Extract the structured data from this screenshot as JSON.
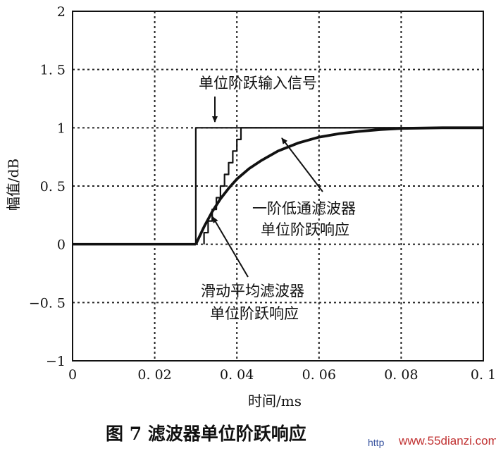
{
  "chart_data": {
    "type": "line",
    "xlabel": "时间/ms",
    "ylabel": "幅值/dB",
    "xlim": [
      0,
      0.1
    ],
    "ylim": [
      -1,
      2
    ],
    "grid": true,
    "xticks": [
      0,
      0.02,
      0.04,
      0.06,
      0.08,
      0.1
    ],
    "xtick_labels": [
      "0",
      "0. 02",
      "0. 04",
      "0. 06",
      "0. 08",
      "0. 1"
    ],
    "yticks": [
      -1,
      -0.5,
      0,
      0.5,
      1,
      1.5,
      2
    ],
    "ytick_labels": [
      "−1",
      "−0. 5",
      "0",
      "0. 5",
      "1",
      "1. 5",
      "2"
    ],
    "series": [
      {
        "key": "step",
        "x": [
          0,
          0.03,
          0.03,
          0.1
        ],
        "y": [
          0,
          0,
          1,
          1
        ]
      },
      {
        "key": "first_order",
        "x": [
          0.03,
          0.032,
          0.034,
          0.036,
          0.038,
          0.04,
          0.043,
          0.046,
          0.05,
          0.055,
          0.06,
          0.065,
          0.07,
          0.075,
          0.08,
          0.09,
          0.1
        ],
        "y": [
          0,
          0.15,
          0.28,
          0.39,
          0.48,
          0.56,
          0.65,
          0.72,
          0.8,
          0.87,
          0.92,
          0.95,
          0.97,
          0.985,
          0.995,
          1,
          1
        ]
      },
      {
        "key": "moving_average",
        "x": [
          0.032,
          0.032,
          0.033,
          0.033,
          0.034,
          0.034,
          0.035,
          0.035,
          0.036,
          0.036,
          0.037,
          0.037,
          0.038,
          0.038,
          0.039,
          0.039,
          0.04,
          0.04,
          0.041,
          0.041,
          0.1
        ],
        "y": [
          0,
          0.1,
          0.1,
          0.2,
          0.2,
          0.3,
          0.3,
          0.4,
          0.4,
          0.5,
          0.5,
          0.6,
          0.6,
          0.7,
          0.7,
          0.8,
          0.8,
          0.9,
          0.9,
          1,
          1
        ]
      }
    ],
    "annotations": {
      "step": "单位阶跃输入信号",
      "first_order": [
        "一阶低通滤波器",
        "单位阶跃响应"
      ],
      "moving_average": [
        "滑动平均滤波器",
        "单位阶跃响应"
      ]
    }
  },
  "caption": "图 7  滤波器单位阶跃响应",
  "watermark": {
    "left": "http",
    "right": "www.55dianzi.com"
  }
}
